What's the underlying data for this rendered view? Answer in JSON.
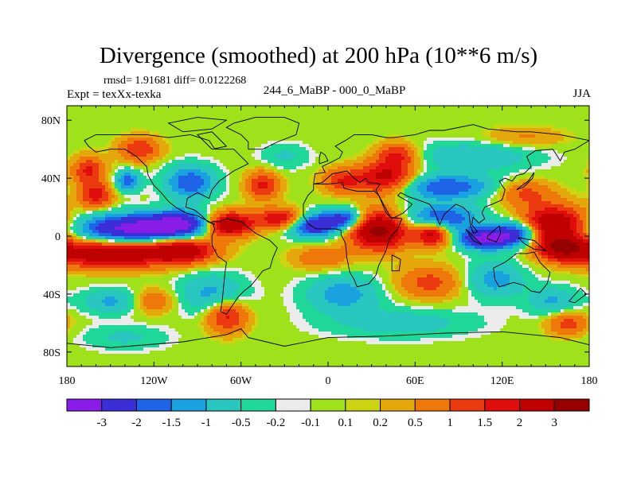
{
  "header": {
    "title": "Divergence (smoothed) at 200 hPa (10**6 m/s)",
    "stats": "rmsd= 1.91681 diff= 0.0122268",
    "experiment": "Expt = texXx-texka",
    "difference_label": "244_6_MaBP - 000_0_MaBP",
    "season": "JJA"
  },
  "chart_data": {
    "type": "heatmap",
    "title": "Divergence (smoothed) at 200 hPa (10**6 m/s)",
    "xlabel": "",
    "ylabel": "",
    "x_range": [
      -180,
      180
    ],
    "y_range": [
      -90,
      90
    ],
    "x_ticks": [
      {
        "value": -180,
        "label": "180"
      },
      {
        "value": -120,
        "label": "120W"
      },
      {
        "value": -60,
        "label": "60W"
      },
      {
        "value": 0,
        "label": "0"
      },
      {
        "value": 60,
        "label": "60E"
      },
      {
        "value": 120,
        "label": "120E"
      },
      {
        "value": 180,
        "label": "180"
      }
    ],
    "y_ticks": [
      {
        "value": 80,
        "label": "80N"
      },
      {
        "value": 40,
        "label": "40N"
      },
      {
        "value": 0,
        "label": "0"
      },
      {
        "value": -40,
        "label": "40S"
      },
      {
        "value": -80,
        "label": "80S"
      }
    ],
    "levels": [
      -3,
      -2,
      -1.5,
      -1,
      -0.5,
      -0.2,
      -0.1,
      0.1,
      0.2,
      0.5,
      1,
      1.5,
      2,
      3
    ],
    "level_labels": [
      "-3",
      "-2",
      "-1.5",
      "-1",
      "-0.5",
      "-0.2",
      "-0.1",
      "0.1",
      "0.2",
      "0.5",
      "1",
      "1.5",
      "2",
      "3"
    ],
    "colors": [
      "#8a1ce8",
      "#3a2ed6",
      "#1f63e6",
      "#1aa1e0",
      "#28c6bf",
      "#20d79a",
      "#ebebeb",
      "#9fe11a",
      "#ccd414",
      "#e5a80c",
      "#ef780a",
      "#ec3a10",
      "#e00d0d",
      "#bf0000",
      "#950000"
    ],
    "features": [
      {
        "lon": -135,
        "lat": 5,
        "value": -3.4,
        "sx": 26,
        "sy": 7
      },
      {
        "lon": -100,
        "lat": 9,
        "value": -2.6,
        "sx": 16,
        "sy": 6
      },
      {
        "lon": -10,
        "lat": 8,
        "value": -3.1,
        "sx": 12,
        "sy": 6
      },
      {
        "lon": 12,
        "lat": 12,
        "value": -2.2,
        "sx": 9,
        "sy": 5
      },
      {
        "lon": 108,
        "lat": -2,
        "value": -3.2,
        "sx": 12,
        "sy": 5
      },
      {
        "lon": 130,
        "lat": 2,
        "value": -2.6,
        "sx": 12,
        "sy": 6
      },
      {
        "lon": 78,
        "lat": 12,
        "value": -2.2,
        "sx": 18,
        "sy": 7
      },
      {
        "lon": 80,
        "lat": 34,
        "value": -2.0,
        "sx": 25,
        "sy": 6
      },
      {
        "lon": -95,
        "lat": 37,
        "value": -2.0,
        "sx": 12,
        "sy": 8
      },
      {
        "lon": -138,
        "lat": 38,
        "value": -1.8,
        "sx": 6,
        "sy": 5
      },
      {
        "lon": -150,
        "lat": -45,
        "value": -1.1,
        "sx": 14,
        "sy": 6
      },
      {
        "lon": -80,
        "lat": -40,
        "value": -1.2,
        "sx": 16,
        "sy": 10
      },
      {
        "lon": 10,
        "lat": -40,
        "value": -1.3,
        "sx": 18,
        "sy": 9
      },
      {
        "lon": 115,
        "lat": -30,
        "value": -1.3,
        "sx": 14,
        "sy": 9
      },
      {
        "lon": 155,
        "lat": -45,
        "value": -1.1,
        "sx": 12,
        "sy": 7
      },
      {
        "lon": 100,
        "lat": 55,
        "value": -1.0,
        "sx": 30,
        "sy": 7
      },
      {
        "lon": 50,
        "lat": -60,
        "value": -0.8,
        "sx": 35,
        "sy": 7
      },
      {
        "lon": -140,
        "lat": -70,
        "value": -0.6,
        "sx": 20,
        "sy": 6
      },
      {
        "lon": -30,
        "lat": 55,
        "value": -0.6,
        "sx": 12,
        "sy": 6
      },
      {
        "lon": -150,
        "lat": -12,
        "value": 2.8,
        "sx": 30,
        "sy": 7
      },
      {
        "lon": -100,
        "lat": -10,
        "value": 2.4,
        "sx": 16,
        "sy": 6
      },
      {
        "lon": -70,
        "lat": 8,
        "value": 3.2,
        "sx": 12,
        "sy": 6
      },
      {
        "lon": -30,
        "lat": 12,
        "value": 2.2,
        "sx": 14,
        "sy": 5
      },
      {
        "lon": 35,
        "lat": 4,
        "value": 3.4,
        "sx": 14,
        "sy": 9
      },
      {
        "lon": 72,
        "lat": 2,
        "value": 2.6,
        "sx": 9,
        "sy": 6
      },
      {
        "lon": 155,
        "lat": 8,
        "value": 3.0,
        "sx": 16,
        "sy": 9
      },
      {
        "lon": 162,
        "lat": -8,
        "value": 2.5,
        "sx": 12,
        "sy": 6
      },
      {
        "lon": 40,
        "lat": 40,
        "value": 2.4,
        "sx": 14,
        "sy": 8
      },
      {
        "lon": 48,
        "lat": 56,
        "value": 1.6,
        "sx": 10,
        "sy": 6
      },
      {
        "lon": 10,
        "lat": 38,
        "value": 1.4,
        "sx": 10,
        "sy": 6
      },
      {
        "lon": -45,
        "lat": 35,
        "value": 1.6,
        "sx": 8,
        "sy": 7
      },
      {
        "lon": -165,
        "lat": 45,
        "value": 1.6,
        "sx": 8,
        "sy": 7
      },
      {
        "lon": -130,
        "lat": 60,
        "value": 1.5,
        "sx": 10,
        "sy": 6
      },
      {
        "lon": -160,
        "lat": 28,
        "value": 1.8,
        "sx": 8,
        "sy": 6
      },
      {
        "lon": 135,
        "lat": 30,
        "value": 1.2,
        "sx": 14,
        "sy": 6
      },
      {
        "lon": -70,
        "lat": -55,
        "value": 1.8,
        "sx": 10,
        "sy": 8
      },
      {
        "lon": -120,
        "lat": -45,
        "value": 1.0,
        "sx": 10,
        "sy": 6
      },
      {
        "lon": 70,
        "lat": -32,
        "value": 1.2,
        "sx": 16,
        "sy": 8
      },
      {
        "lon": 165,
        "lat": -60,
        "value": 1.3,
        "sx": 10,
        "sy": 6
      },
      {
        "lon": 135,
        "lat": 68,
        "value": 0.6,
        "sx": 20,
        "sy": 5
      },
      {
        "lon": -5,
        "lat": -15,
        "value": 0.9,
        "sx": 14,
        "sy": 6
      }
    ],
    "coastlines": [
      [
        [
          -168,
          66
        ],
        [
          -160,
          70
        ],
        [
          -140,
          70
        ],
        [
          -125,
          70
        ],
        [
          -110,
          68
        ],
        [
          -95,
          70
        ],
        [
          -82,
          66
        ],
        [
          -78,
          60
        ],
        [
          -65,
          60
        ],
        [
          -60,
          55
        ],
        [
          -55,
          50
        ],
        [
          -65,
          45
        ],
        [
          -75,
          38
        ],
        [
          -80,
          32
        ],
        [
          -82,
          26
        ],
        [
          -90,
          30
        ],
        [
          -97,
          26
        ],
        [
          -98,
          20
        ],
        [
          -92,
          18
        ],
        [
          -88,
          15
        ],
        [
          -83,
          10
        ],
        [
          -78,
          8
        ],
        [
          -90,
          14
        ],
        [
          -98,
          16
        ],
        [
          -105,
          20
        ],
        [
          -110,
          24
        ],
        [
          -115,
          30
        ],
        [
          -120,
          35
        ],
        [
          -124,
          42
        ],
        [
          -125,
          48
        ],
        [
          -132,
          55
        ],
        [
          -140,
          60
        ],
        [
          -150,
          60
        ],
        [
          -160,
          58
        ],
        [
          -165,
          62
        ],
        [
          -168,
          66
        ]
      ],
      [
        [
          -80,
          10
        ],
        [
          -75,
          10
        ],
        [
          -70,
          12
        ],
        [
          -60,
          10
        ],
        [
          -50,
          2
        ],
        [
          -40,
          -3
        ],
        [
          -35,
          -8
        ],
        [
          -38,
          -15
        ],
        [
          -40,
          -22
        ],
        [
          -45,
          -24
        ],
        [
          -48,
          -28
        ],
        [
          -53,
          -34
        ],
        [
          -58,
          -38
        ],
        [
          -62,
          -42
        ],
        [
          -66,
          -48
        ],
        [
          -70,
          -54
        ],
        [
          -74,
          -52
        ],
        [
          -73,
          -45
        ],
        [
          -72,
          -35
        ],
        [
          -71,
          -25
        ],
        [
          -70,
          -18
        ],
        [
          -76,
          -14
        ],
        [
          -80,
          -6
        ],
        [
          -80,
          0
        ],
        [
          -78,
          5
        ],
        [
          -80,
          10
        ]
      ],
      [
        [
          -55,
          60
        ],
        [
          -45,
          60
        ],
        [
          -35,
          65
        ],
        [
          -22,
          70
        ],
        [
          -20,
          78
        ],
        [
          -30,
          82
        ],
        [
          -50,
          82
        ],
        [
          -65,
          78
        ],
        [
          -70,
          75
        ],
        [
          -60,
          70
        ],
        [
          -55,
          65
        ],
        [
          -55,
          60
        ]
      ],
      [
        [
          -10,
          36
        ],
        [
          -5,
          36
        ],
        [
          0,
          36
        ],
        [
          10,
          37
        ],
        [
          11,
          33
        ],
        [
          20,
          31
        ],
        [
          32,
          31
        ],
        [
          35,
          28
        ],
        [
          43,
          13
        ],
        [
          51,
          12
        ],
        [
          48,
          5
        ],
        [
          42,
          -2
        ],
        [
          40,
          -10
        ],
        [
          35,
          -20
        ],
        [
          33,
          -27
        ],
        [
          28,
          -33
        ],
        [
          20,
          -35
        ],
        [
          18,
          -30
        ],
        [
          15,
          -25
        ],
        [
          13,
          -15
        ],
        [
          12,
          -5
        ],
        [
          9,
          1
        ],
        [
          9,
          4
        ],
        [
          5,
          5
        ],
        [
          0,
          5
        ],
        [
          -8,
          5
        ],
        [
          -13,
          8
        ],
        [
          -17,
          14
        ],
        [
          -17,
          22
        ],
        [
          -14,
          28
        ],
        [
          -10,
          32
        ],
        [
          -10,
          36
        ]
      ],
      [
        [
          -10,
          36
        ],
        [
          -9,
          43
        ],
        [
          -2,
          44
        ],
        [
          -4,
          48
        ],
        [
          2,
          51
        ],
        [
          8,
          54
        ],
        [
          10,
          58
        ],
        [
          5,
          62
        ],
        [
          12,
          66
        ],
        [
          18,
          70
        ],
        [
          30,
          70
        ],
        [
          40,
          68
        ],
        [
          45,
          68
        ],
        [
          60,
          70
        ],
        [
          70,
          73
        ],
        [
          80,
          73
        ],
        [
          100,
          77
        ],
        [
          110,
          74
        ],
        [
          130,
          72
        ],
        [
          140,
          72
        ],
        [
          160,
          70
        ],
        [
          170,
          68
        ],
        [
          180,
          66
        ],
        [
          170,
          60
        ],
        [
          163,
          58
        ],
        [
          160,
          52
        ],
        [
          155,
          60
        ],
        [
          143,
          59
        ],
        [
          137,
          55
        ],
        [
          140,
          48
        ],
        [
          135,
          43
        ],
        [
          130,
          42
        ],
        [
          127,
          38
        ],
        [
          122,
          40
        ],
        [
          118,
          38
        ],
        [
          122,
          32
        ],
        [
          120,
          25
        ],
        [
          113,
          22
        ],
        [
          108,
          20
        ],
        [
          106,
          16
        ],
        [
          108,
          12
        ],
        [
          104,
          9
        ],
        [
          100,
          13
        ],
        [
          99,
          8
        ],
        [
          103,
          3
        ],
        [
          100,
          2
        ],
        [
          98,
          8
        ],
        [
          97,
          16
        ],
        [
          93,
          20
        ],
        [
          88,
          22
        ],
        [
          80,
          15
        ],
        [
          77,
          8
        ],
        [
          73,
          18
        ],
        [
          70,
          22
        ],
        [
          62,
          25
        ],
        [
          56,
          27
        ],
        [
          50,
          30
        ],
        [
          48,
          28
        ],
        [
          55,
          24
        ],
        [
          58,
          22
        ],
        [
          52,
          16
        ],
        [
          44,
          12
        ],
        [
          40,
          16
        ],
        [
          35,
          28
        ],
        [
          33,
          32
        ],
        [
          36,
          36
        ],
        [
          28,
          37
        ],
        [
          26,
          40
        ],
        [
          22,
          37
        ],
        [
          18,
          40
        ],
        [
          13,
          45
        ],
        [
          8,
          44
        ],
        [
          3,
          43
        ],
        [
          -4,
          37
        ],
        [
          -10,
          36
        ]
      ],
      [
        [
          114,
          -22
        ],
        [
          122,
          -18
        ],
        [
          130,
          -12
        ],
        [
          137,
          -12
        ],
        [
          142,
          -11
        ],
        [
          146,
          -18
        ],
        [
          153,
          -25
        ],
        [
          151,
          -33
        ],
        [
          146,
          -39
        ],
        [
          140,
          -38
        ],
        [
          135,
          -34
        ],
        [
          128,
          -32
        ],
        [
          118,
          -35
        ],
        [
          115,
          -30
        ],
        [
          114,
          -22
        ]
      ],
      [
        [
          -180,
          -74
        ],
        [
          -150,
          -77
        ],
        [
          -100,
          -73
        ],
        [
          -70,
          -68
        ],
        [
          -60,
          -64
        ],
        [
          -55,
          -70
        ],
        [
          -30,
          -76
        ],
        [
          0,
          -70
        ],
        [
          40,
          -69
        ],
        [
          80,
          -67
        ],
        [
          120,
          -66
        ],
        [
          160,
          -70
        ],
        [
          180,
          -75
        ]
      ],
      [
        [
          95,
          5
        ],
        [
          100,
          0
        ],
        [
          106,
          -6
        ],
        [
          100,
          -3
        ],
        [
          95,
          5
        ]
      ],
      [
        [
          110,
          0
        ],
        [
          118,
          7
        ],
        [
          119,
          2
        ],
        [
          116,
          -4
        ],
        [
          110,
          -2
        ],
        [
          110,
          0
        ]
      ],
      [
        [
          131,
          -1
        ],
        [
          142,
          -3
        ],
        [
          150,
          -10
        ],
        [
          142,
          -9
        ],
        [
          135,
          -5
        ],
        [
          131,
          -1
        ]
      ],
      [
        [
          44,
          -13
        ],
        [
          50,
          -16
        ],
        [
          49,
          -24
        ],
        [
          44,
          -24
        ],
        [
          44,
          -13
        ]
      ],
      [
        [
          130,
          32
        ],
        [
          135,
          34
        ],
        [
          141,
          40
        ],
        [
          142,
          44
        ],
        [
          138,
          38
        ],
        [
          131,
          33
        ],
        [
          130,
          32
        ]
      ],
      [
        [
          -6,
          50
        ],
        [
          0,
          52
        ],
        [
          -2,
          56
        ],
        [
          -5,
          58
        ],
        [
          -6,
          54
        ],
        [
          -6,
          50
        ]
      ],
      [
        [
          -80,
          60
        ],
        [
          -70,
          62
        ],
        [
          -80,
          72
        ],
        [
          -90,
          70
        ],
        [
          -80,
          60
        ]
      ],
      [
        [
          -100,
          72
        ],
        [
          -80,
          74
        ],
        [
          -70,
          80
        ],
        [
          -90,
          82
        ],
        [
          -110,
          78
        ],
        [
          -100,
          72
        ]
      ],
      [
        [
          166,
          -45
        ],
        [
          174,
          -36
        ],
        [
          178,
          -40
        ],
        [
          170,
          -46
        ],
        [
          166,
          -45
        ]
      ]
    ]
  }
}
